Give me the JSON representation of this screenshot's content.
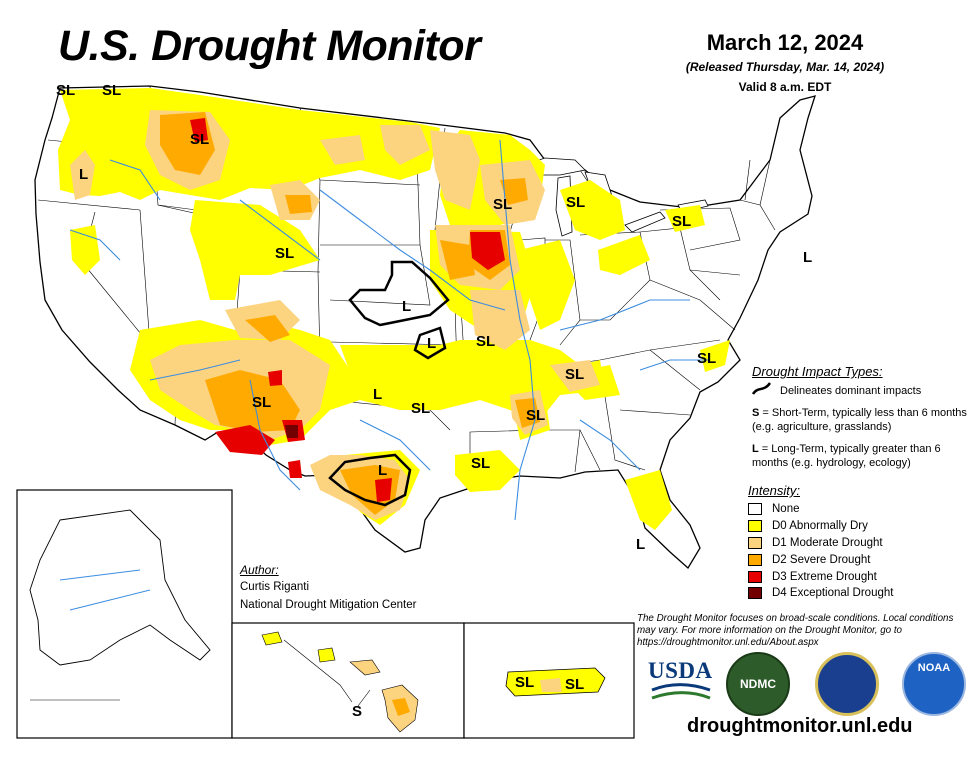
{
  "header": {
    "title": "U.S. Drought Monitor",
    "date": "March 12, 2024",
    "released": "(Released Thursday, Mar. 14, 2024)",
    "valid": "Valid 8 a.m. EDT"
  },
  "impact_types": {
    "title": "Drought Impact Types:",
    "delineates": "Delineates dominant impacts",
    "s_letter": "S",
    "s_text": " = Short-Term, typically less than 6 months (e.g. agriculture, grasslands)",
    "l_letter": "L",
    "l_text": " = Long-Term, typically greater than 6 months (e.g. hydrology, ecology)"
  },
  "intensity": {
    "title": "Intensity:",
    "items": [
      {
        "label": "None",
        "color": "#ffffff"
      },
      {
        "label": "D0 Abnormally Dry",
        "color": "#ffff00"
      },
      {
        "label": "D1 Moderate Drought",
        "color": "#fcd37f"
      },
      {
        "label": "D2 Severe Drought",
        "color": "#ffaa00"
      },
      {
        "label": "D3 Extreme Drought",
        "color": "#e60000"
      },
      {
        "label": "D4 Exceptional Drought",
        "color": "#730000"
      }
    ]
  },
  "author": {
    "label": "Author:",
    "name": "Curtis Riganti",
    "org": "National Drought Mitigation Center"
  },
  "disclaimer": "The Drought Monitor focuses on broad-scale conditions. Local conditions may vary. For more information on the Drought Monitor, go to https://droughtmonitor.unl.edu/About.aspx",
  "logos": {
    "usda": "USDA",
    "ndmc": "NDMC",
    "noaa": "NOAA"
  },
  "website": "droughtmonitor.unl.edu",
  "map_labels": [
    "SL",
    "SL",
    "SL",
    "L",
    "SL",
    "SL",
    "SL",
    "SL",
    "L",
    "L",
    "SL",
    "SL",
    "SL",
    "L",
    "SL",
    "SL",
    "SL",
    "L",
    "SL",
    "L",
    "L",
    "S",
    "SL",
    "SL"
  ]
}
